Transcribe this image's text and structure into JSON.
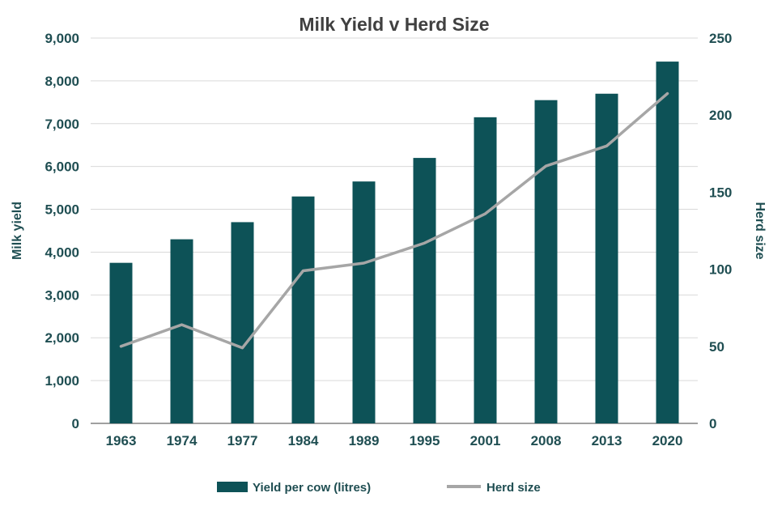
{
  "chart_data": {
    "type": "combo",
    "title": "Milk Yield v Herd Size",
    "categories": [
      "1963",
      "1974",
      "1977",
      "1984",
      "1989",
      "1995",
      "2001",
      "2008",
      "2013",
      "2020"
    ],
    "series": [
      {
        "name": "Yield per cow (litres)",
        "type": "bar",
        "axis": "left",
        "values": [
          3750,
          4300,
          4700,
          5300,
          5650,
          6200,
          7150,
          7550,
          7700,
          8450
        ]
      },
      {
        "name": "Herd size",
        "type": "line",
        "axis": "right",
        "values": [
          50,
          64,
          49,
          99,
          104,
          117,
          136,
          167,
          180,
          214
        ]
      }
    ],
    "left_axis": {
      "label": "Milk yield",
      "min": 0,
      "max": 9000,
      "step": 1000
    },
    "right_axis": {
      "label": "Herd size",
      "min": 0,
      "max": 250,
      "step": 50
    },
    "grid": true,
    "legend_position": "bottom",
    "colors": {
      "bar": "#0d5257",
      "line": "#a6a6a6",
      "grid": "#d9d9d9",
      "axis_line": "#808080",
      "title": "#404040",
      "labels": "#1f4e52",
      "background": "#ffffff"
    }
  }
}
